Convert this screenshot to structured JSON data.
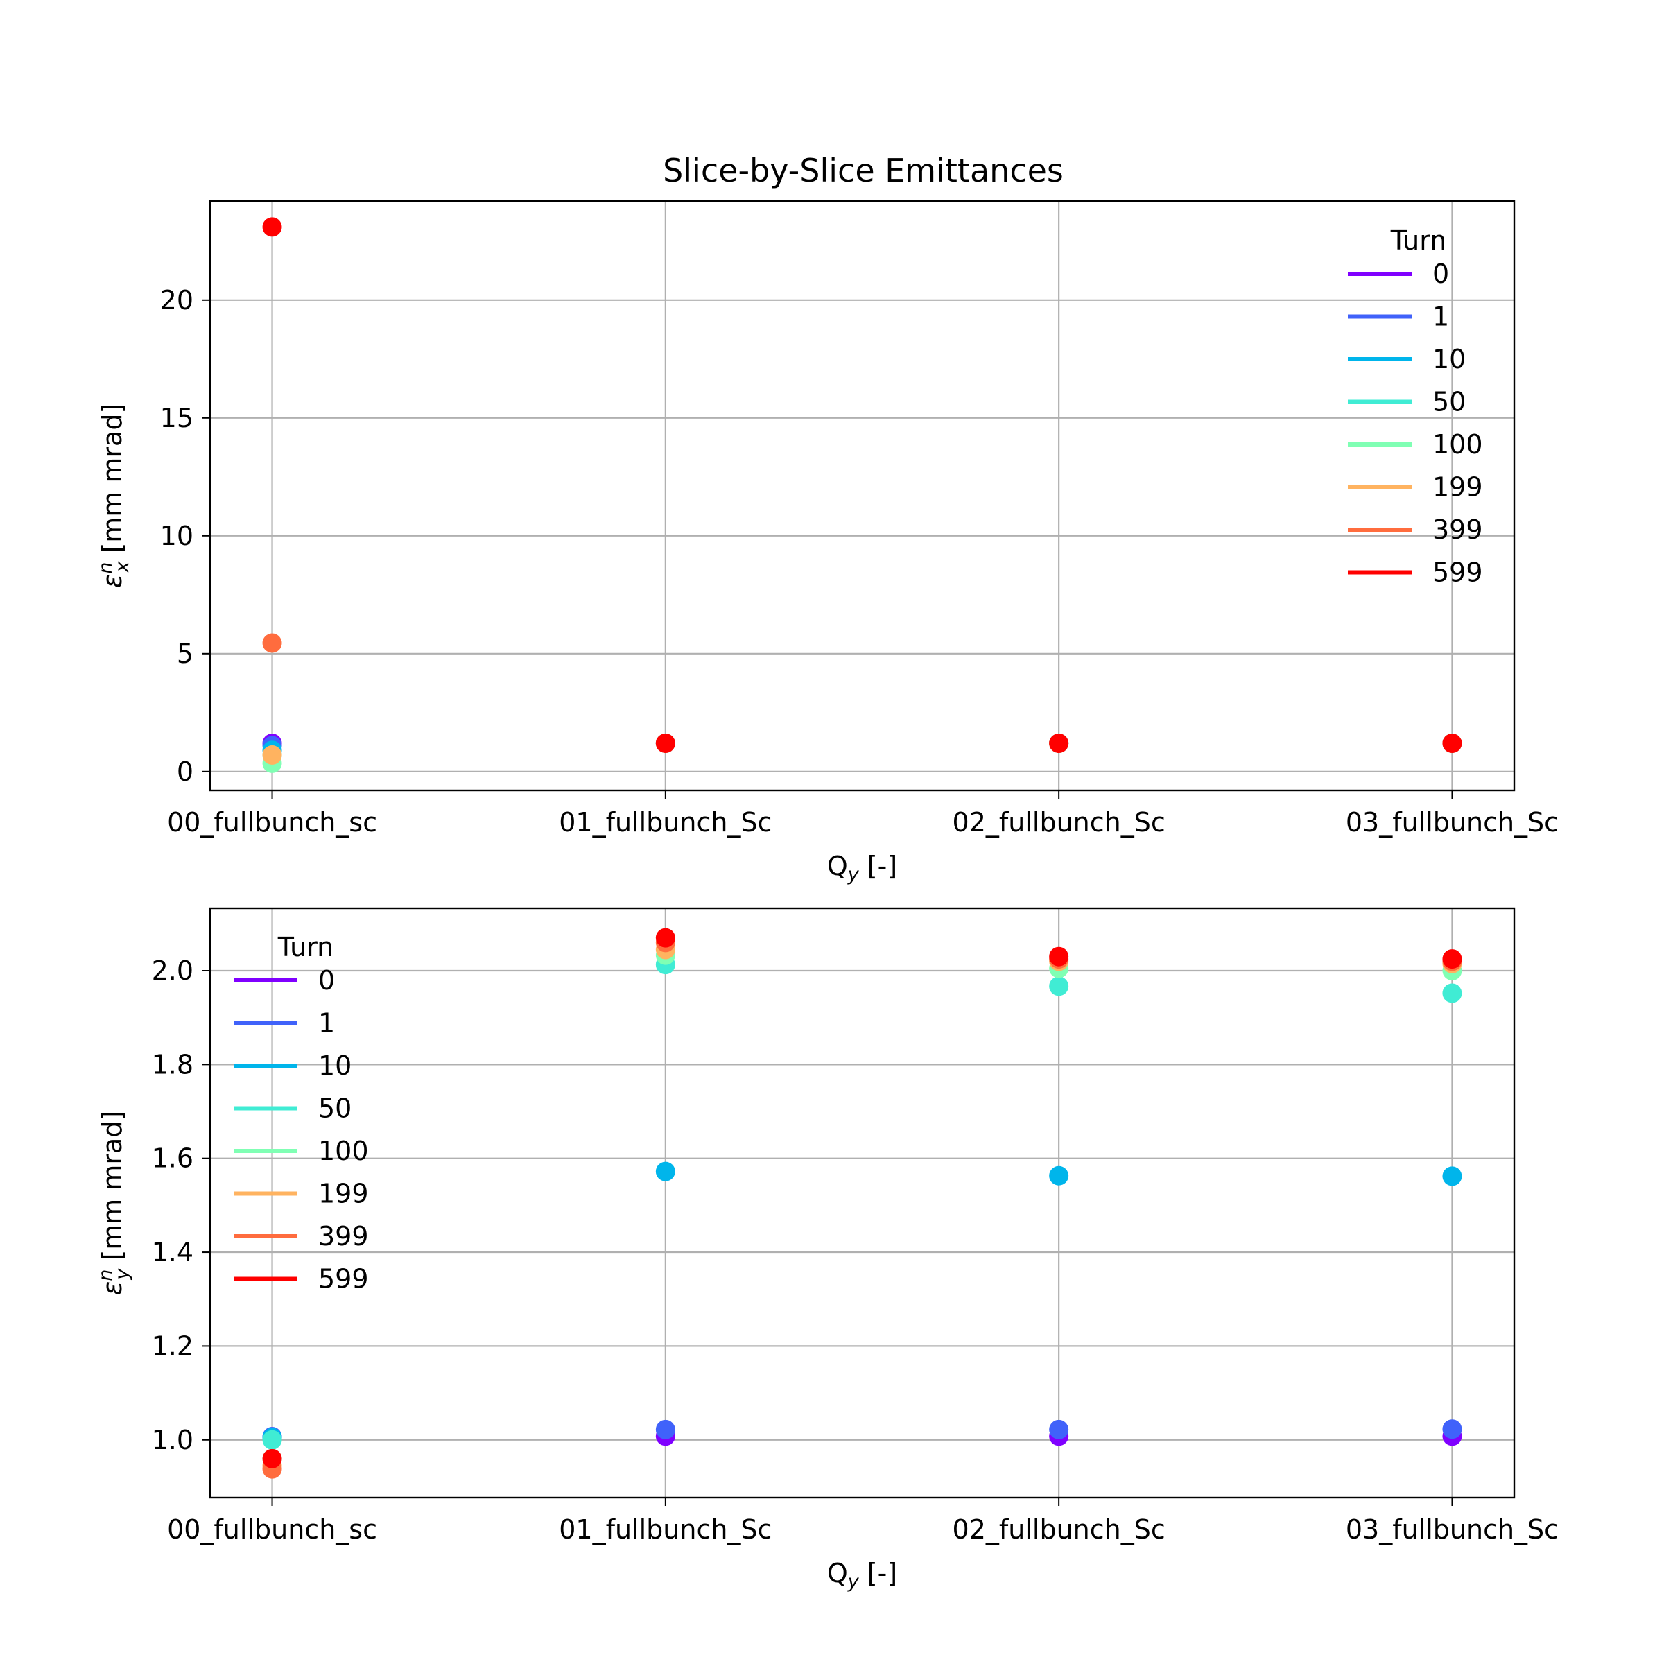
{
  "figure": {
    "title": "Slice-by-Slice Emittances"
  },
  "chart_data": [
    {
      "type": "scatter",
      "categories": [
        "00_fullbunch_sc",
        "01_fullbunch_Sc",
        "02_fullbunch_Sc",
        "03_fullbunch_Sc"
      ],
      "xlabel": "Q",
      "xlabel_sub": "y",
      "xlabel_suffix": " [-]",
      "ylabel": "ε",
      "ylabel_sup": "n",
      "ylabel_sub": "x",
      "ylabel_suffix": " [mm mrad]",
      "ylim": [
        -0.8,
        24.2
      ],
      "yticks": [
        0,
        5,
        10,
        15,
        20
      ],
      "yticklabels": [
        "0",
        "5",
        "10",
        "15",
        "20"
      ],
      "grid": true,
      "legend_title": "Turn",
      "legend_position": "top-right",
      "series": [
        {
          "name": "0",
          "color": "#8000ff",
          "values": [
            1.2,
            1.2,
            1.2,
            1.2
          ]
        },
        {
          "name": "1",
          "color": "#4062fa",
          "values": [
            1.1,
            1.2,
            1.2,
            1.2
          ]
        },
        {
          "name": "10",
          "color": "#00b5eb",
          "values": [
            0.9,
            1.2,
            1.2,
            1.2
          ]
        },
        {
          "name": "50",
          "color": "#40ecd4",
          "values": [
            0.7,
            1.2,
            1.2,
            1.2
          ]
        },
        {
          "name": "100",
          "color": "#80ffb4",
          "values": [
            0.35,
            1.2,
            1.2,
            1.2
          ]
        },
        {
          "name": "199",
          "color": "#ffb360",
          "values": [
            0.7,
            1.2,
            1.2,
            1.2
          ]
        },
        {
          "name": "399",
          "color": "#ff6c3e",
          "values": [
            5.45,
            1.2,
            1.2,
            1.2
          ]
        },
        {
          "name": "599",
          "color": "#ff0000",
          "values": [
            23.1,
            1.2,
            1.2,
            1.2
          ]
        }
      ]
    },
    {
      "type": "scatter",
      "categories": [
        "00_fullbunch_sc",
        "01_fullbunch_Sc",
        "02_fullbunch_Sc",
        "03_fullbunch_Sc"
      ],
      "xlabel": "Q",
      "xlabel_sub": "y",
      "xlabel_suffix": " [-]",
      "ylabel": "ε",
      "ylabel_sup": "n",
      "ylabel_sub": "y",
      "ylabel_suffix": " [mm mrad]",
      "ylim": [
        0.877,
        2.133
      ],
      "yticks": [
        1.0,
        1.2,
        1.4,
        1.6,
        1.8,
        2.0
      ],
      "yticklabels": [
        "1.0",
        "1.2",
        "1.4",
        "1.6",
        "1.8",
        "2.0"
      ],
      "grid": true,
      "legend_title": "Turn",
      "legend_position": "top-left",
      "series": [
        {
          "name": "0",
          "color": "#8000ff",
          "values": [
            1.005,
            1.008,
            1.008,
            1.008
          ]
        },
        {
          "name": "1",
          "color": "#4062fa",
          "values": [
            1.007,
            1.022,
            1.022,
            1.023
          ]
        },
        {
          "name": "10",
          "color": "#00b5eb",
          "values": [
            1.005,
            1.572,
            1.563,
            1.562
          ]
        },
        {
          "name": "50",
          "color": "#40ecd4",
          "values": [
            1.0,
            2.013,
            1.967,
            1.952
          ]
        },
        {
          "name": "100",
          "color": "#80ffb4",
          "values": [
            0.96,
            2.033,
            2.005,
            2.0
          ]
        },
        {
          "name": "199",
          "color": "#ffb360",
          "values": [
            0.945,
            2.045,
            2.02,
            2.015
          ]
        },
        {
          "name": "399",
          "color": "#ff6c3e",
          "values": [
            0.938,
            2.06,
            2.025,
            2.02
          ]
        },
        {
          "name": "599",
          "color": "#ff0000",
          "values": [
            0.96,
            2.07,
            2.03,
            2.025
          ]
        }
      ]
    }
  ]
}
